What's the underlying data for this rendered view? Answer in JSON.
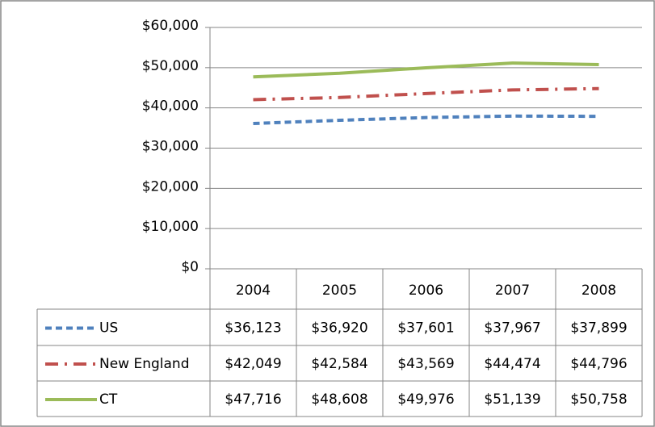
{
  "chart_data": {
    "type": "line",
    "categories": [
      "2004",
      "2005",
      "2006",
      "2007",
      "2008"
    ],
    "series": [
      {
        "name": "US",
        "color": "#4f81bd",
        "dash": "dash",
        "values": [
          36123,
          36920,
          37601,
          37967,
          37899
        ],
        "value_labels": [
          "$36,123",
          "$36,920",
          "$37,601",
          "$37,967",
          "$37,899"
        ]
      },
      {
        "name": "New England",
        "color": "#c0504d",
        "dash": "dashdot",
        "values": [
          42049,
          42584,
          43569,
          44474,
          44796
        ],
        "value_labels": [
          "$42,049",
          "$42,584",
          "$43,569",
          "$44,474",
          "$44,796"
        ]
      },
      {
        "name": "CT",
        "color": "#9bbb59",
        "dash": "solid",
        "values": [
          47716,
          48608,
          49976,
          51139,
          50758
        ],
        "value_labels": [
          "$47,716",
          "$48,608",
          "$49,976",
          "$51,139",
          "$50,758"
        ]
      }
    ],
    "ylim": [
      0,
      60000
    ],
    "yticks": [
      {
        "value": 0,
        "label": "$0"
      },
      {
        "value": 10000,
        "label": "$10,000"
      },
      {
        "value": 20000,
        "label": "$20,000"
      },
      {
        "value": 30000,
        "label": "$30,000"
      },
      {
        "value": 40000,
        "label": "$40,000"
      },
      {
        "value": 50000,
        "label": "$50,000"
      },
      {
        "value": 60000,
        "label": "$60,000"
      }
    ],
    "grid": true,
    "data_table": true
  }
}
